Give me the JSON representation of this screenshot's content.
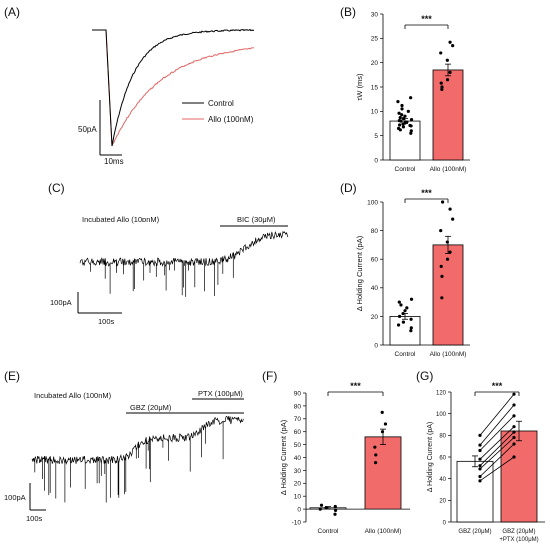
{
  "panels": {
    "A": {
      "label": "(A)",
      "legend": [
        {
          "name": "Control",
          "color": "#000000"
        },
        {
          "name": "Allo (100nM)",
          "color": "#e06666"
        }
      ],
      "scalebar_y": "50pA",
      "scalebar_x": "10ms"
    },
    "B": {
      "label": "(B)",
      "sig": "***"
    },
    "C": {
      "label": "(C)",
      "condition": "Incubated Allo (10ɒnM)",
      "drug": "BIC (30μM)",
      "scalebar_y": "100pA",
      "scalebar_x": "100s"
    },
    "D": {
      "label": "(D)",
      "sig": "***"
    },
    "E": {
      "label": "(E)",
      "condition": "Incubated Allo (100nM)",
      "drug1": "GBZ (20μM)",
      "drug2": "PTX (100μM)",
      "scalebar_y": "100pA",
      "scalebar_x": "100s"
    },
    "F": {
      "label": "(F)",
      "sig": "***"
    },
    "G": {
      "label": "(G)",
      "sig": "***"
    }
  },
  "colors": {
    "control_bar": "#ffffff",
    "allo_bar": "#f26b6b",
    "trace_allo": "#e06666",
    "trace_control": "#000000"
  },
  "chart_data": [
    {
      "id": "B",
      "type": "bar",
      "categories": [
        "Control",
        "Allo (100nM)"
      ],
      "values": [
        8.0,
        18.5
      ],
      "sem": [
        0.5,
        1.2
      ],
      "ylabel": "τW (ms)",
      "ylim": [
        0,
        30
      ],
      "yticks": [
        0,
        5,
        10,
        15,
        20,
        25,
        30
      ],
      "points": [
        [
          5.5,
          6.0,
          6.5,
          6.8,
          7.0,
          7.2,
          7.4,
          7.6,
          7.8,
          8.0,
          8.1,
          8.3,
          8.5,
          8.7,
          9.0,
          9.3,
          9.6,
          10.0,
          10.5,
          11.2,
          12.0,
          12.8,
          6.2,
          7.1
        ],
        [
          14.5,
          15.0,
          15.8,
          16.5,
          18.0,
          20.5,
          22.0,
          23.5,
          24.2
        ]
      ]
    },
    {
      "id": "D",
      "type": "bar",
      "categories": [
        "Control",
        "Allo (100nM)"
      ],
      "values": [
        20.0,
        70.0
      ],
      "sem": [
        2.0,
        6.0
      ],
      "ylabel": "Δ Holding Current (pA)",
      "ylim": [
        0,
        100
      ],
      "yticks": [
        0,
        20,
        40,
        60,
        80,
        100
      ],
      "points": [
        [
          10,
          12,
          14,
          16,
          18,
          20,
          22,
          24,
          26,
          28,
          30,
          32
        ],
        [
          33,
          48,
          55,
          60,
          65,
          72,
          80,
          88,
          95,
          100
        ]
      ]
    },
    {
      "id": "F",
      "type": "bar",
      "categories": [
        "Control",
        "Allo (100nM)"
      ],
      "values": [
        1.0,
        56.0
      ],
      "sem": [
        1.0,
        6.0
      ],
      "ylabel": "Δ Holding Current (pA)",
      "ylim": [
        -10,
        90
      ],
      "yticks": [
        -10,
        0,
        10,
        20,
        30,
        40,
        50,
        60,
        70,
        80,
        90
      ],
      "points": [
        [
          -4,
          -1,
          0,
          1,
          2,
          3
        ],
        [
          36,
          42,
          48,
          60,
          66,
          75
        ]
      ]
    },
    {
      "id": "G",
      "type": "bar",
      "categories": [
        "GBZ (20μM)",
        "GBZ (20μM) +PTX (100μM)"
      ],
      "values": [
        56.0,
        84.0
      ],
      "sem": [
        5.0,
        9.0
      ],
      "ylabel": "Δ Holding Current (pA)",
      "ylim": [
        0,
        120
      ],
      "yticks": [
        0,
        20,
        40,
        60,
        80,
        100,
        120
      ],
      "pairs": [
        [
          38,
          60
        ],
        [
          42,
          72
        ],
        [
          49,
          78
        ],
        [
          52,
          83
        ],
        [
          58,
          88
        ],
        [
          66,
          98
        ],
        [
          71,
          108
        ],
        [
          80,
          118
        ]
      ]
    }
  ]
}
